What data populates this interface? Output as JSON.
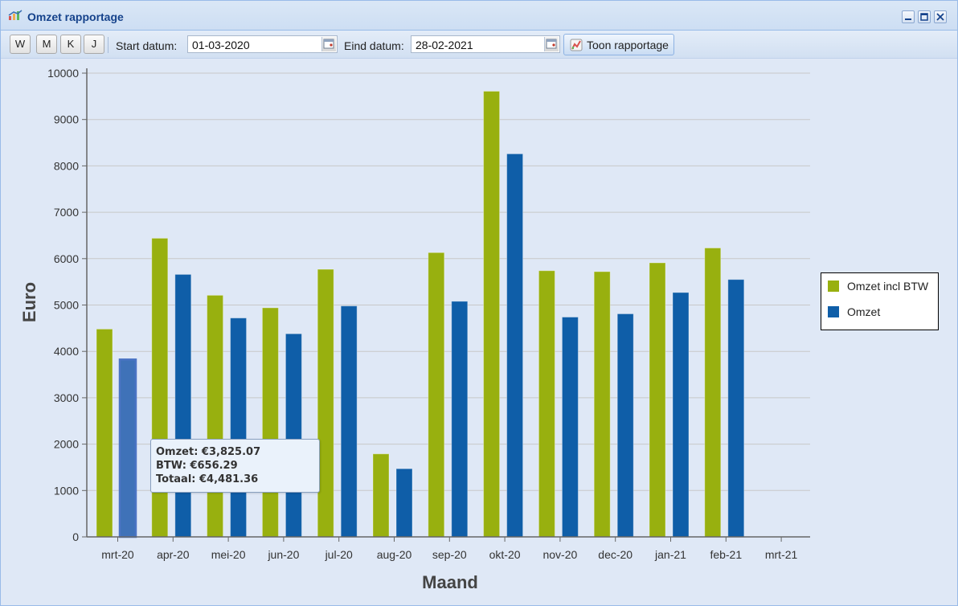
{
  "window": {
    "title": "Omzet rapportage",
    "app_icon": "chart-icon",
    "controls": [
      "minimize-icon",
      "maximize-icon",
      "close-icon"
    ]
  },
  "toolbar": {
    "period_buttons": [
      "W",
      "M",
      "K",
      "J"
    ],
    "start_label": "Start datum:",
    "start_value": "01-03-2020",
    "end_label": "Eind datum:",
    "end_value": "28-02-2021",
    "calendar_icon": "calendar-icon",
    "show_button_label": "Toon rapportage",
    "show_button_icon": "report-icon"
  },
  "chart_data": {
    "type": "bar",
    "xlabel": "Maand",
    "ylabel": "Euro",
    "ylim": [
      0,
      10000
    ],
    "yticks": [
      0,
      1000,
      2000,
      3000,
      4000,
      5000,
      6000,
      7000,
      8000,
      9000,
      10000
    ],
    "grid": true,
    "legend_position": "right",
    "categories": [
      "mrt-20",
      "apr-20",
      "mei-20",
      "jun-20",
      "jul-20",
      "aug-20",
      "sep-20",
      "okt-20",
      "nov-20",
      "dec-20",
      "jan-21",
      "feb-21",
      "mrt-21"
    ],
    "series": [
      {
        "name": "Omzet incl BTW",
        "color": "#98b00f",
        "values": [
          4481.36,
          6440,
          5210,
          4940,
          5770,
          1790,
          6130,
          9610,
          5740,
          5720,
          5910,
          6230,
          null
        ]
      },
      {
        "name": "Omzet",
        "color": "#0f5ea8",
        "values": [
          3825.07,
          5660,
          4720,
          4380,
          4980,
          1470,
          5080,
          8260,
          4740,
          4810,
          5270,
          5550,
          null
        ]
      }
    ],
    "highlighted": {
      "series": 1,
      "index": 0,
      "color": "#4b74c4"
    }
  },
  "tooltip": {
    "lines": [
      "Omzet: €3,825.07",
      "BTW: €656.29",
      "Totaal: €4,481.36"
    ]
  }
}
